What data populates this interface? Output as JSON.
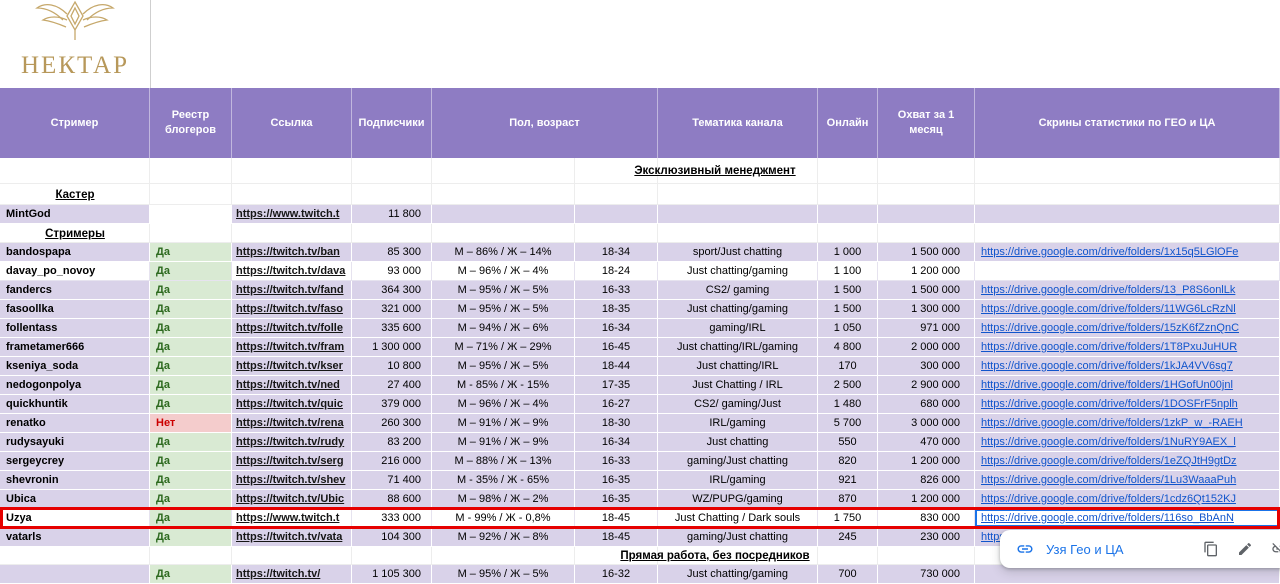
{
  "brand": {
    "name": "НЕКТАР"
  },
  "colors": {
    "header_bg": "#8e7cc3",
    "row_lavender": "#d9d2e9",
    "registry_yes_bg": "#d9ead3",
    "registry_yes_text": "#2d6a1f",
    "registry_no_bg": "#f4cccc",
    "registry_no_text": "#cc0000",
    "drive_link": "#1155cc",
    "selection_red": "#e60000",
    "selected_cell_blue": "#1a73e8",
    "logo_gold": "#b7985a"
  },
  "header": {
    "columns": [
      "Стример",
      "Реестр блогеров",
      "Ссылка",
      "Подписчики",
      "Пол, возраст",
      "Тематика канала",
      "Онлайн",
      "Охват за 1 месяц",
      "Скрины статистики  по ГЕО и ЦА"
    ]
  },
  "popup": {
    "label": "Узя Гео и ЦА",
    "icons": [
      "link-icon",
      "copy-icon",
      "edit-icon",
      "unlink-icon"
    ]
  },
  "rows": [
    {
      "kind": "section",
      "label": "Эксклюзивный менеджмент",
      "h": 26
    },
    {
      "kind": "subhead",
      "label": "Кастер",
      "h": 21
    },
    {
      "kind": "data",
      "bg": "lav",
      "name": "MintGod",
      "reg": "",
      "reg_state": "none",
      "link": "https://www.twitch.t",
      "subs": "11 800",
      "gender": "",
      "age": "",
      "theme": "",
      "online": "",
      "reach": "",
      "drive": ""
    },
    {
      "kind": "subhead",
      "label": "Стримеры",
      "h": 19
    },
    {
      "kind": "data",
      "bg": "lav",
      "name": "bandospapa",
      "reg": "Да",
      "reg_state": "yes",
      "link": "https://twitch.tv/ban",
      "subs": "85 300",
      "gender": "М – 86% / Ж – 14%",
      "age": "18-34",
      "theme": "sport/Just chatting",
      "online": "1 000",
      "reach": "1 500 000",
      "drive": "https://drive.google.com/drive/folders/1x15q5LGlOFe"
    },
    {
      "kind": "data",
      "bg": "white",
      "name": "davay_po_novoy",
      "reg": "Да",
      "reg_state": "yes",
      "link": "https://twitch.tv/dava",
      "subs": "93 000",
      "gender": "М – 96% / Ж – 4%",
      "age": "18-24",
      "theme": "Just chatting/gaming",
      "online": "1 100",
      "reach": "1 200 000",
      "drive": ""
    },
    {
      "kind": "data",
      "bg": "lav",
      "name": "fandercs",
      "reg": "Да",
      "reg_state": "yes",
      "link": "https://twitch.tv/fand",
      "subs": "364 300",
      "gender": "М – 95% / Ж – 5%",
      "age": "16-33",
      "theme": "CS2/ gaming",
      "online": "1 500",
      "reach": "1 500 000",
      "drive": "https://drive.google.com/drive/folders/13_P8S6onlLk"
    },
    {
      "kind": "data",
      "bg": "lav",
      "name": "fasoollka",
      "reg": "Да",
      "reg_state": "yes",
      "link": "https://twitch.tv/faso",
      "subs": "321 000",
      "gender": "М – 95% / Ж – 5%",
      "age": "18-35",
      "theme": "Just chatting/gaming",
      "online": "1 500",
      "reach": "1 300 000",
      "drive": "https://drive.google.com/drive/folders/11WG6LcRzNl"
    },
    {
      "kind": "data",
      "bg": "lav",
      "name": "follentass",
      "reg": "Да",
      "reg_state": "yes",
      "link": "https://twitch.tv/folle",
      "subs": "335 600",
      "gender": "М – 94% / Ж – 6%",
      "age": "16-34",
      "theme": "gaming/IRL",
      "online": "1 050",
      "reach": "971 000",
      "drive": "https://drive.google.com/drive/folders/15zK6fZznQnC"
    },
    {
      "kind": "data",
      "bg": "lav",
      "name": "frametamer666",
      "reg": "Да",
      "reg_state": "yes",
      "link": "https://twitch.tv/fram",
      "subs": "1 300 000",
      "gender": "М – 71% / Ж – 29%",
      "age": "16-45",
      "theme": "Just chatting/IRL/gaming",
      "online": "4 800",
      "reach": "2 000 000",
      "drive": "https://drive.google.com/drive/folders/1T8PxuJuHUR"
    },
    {
      "kind": "data",
      "bg": "lav",
      "name": "kseniya_soda",
      "reg": "Да",
      "reg_state": "yes",
      "link": "https://twitch.tv/kser",
      "subs": "10 800",
      "gender": "М – 95% / Ж – 5%",
      "age": "18-44",
      "theme": "Just chatting/IRL",
      "online": "170",
      "reach": "300 000",
      "drive": "https://drive.google.com/drive/folders/1kJA4VV6sg7"
    },
    {
      "kind": "data",
      "bg": "lav",
      "name": "nedogonpolya",
      "reg": "Да",
      "reg_state": "yes",
      "link": "https://twitch.tv/ned",
      "subs": "27 400",
      "gender": "М - 85% / Ж - 15%",
      "age": "17-35",
      "theme": "Just Chatting / IRL",
      "online": "2 500",
      "reach": "2 900 000",
      "drive": "https://drive.google.com/drive/folders/1HGofUn00jnl"
    },
    {
      "kind": "data",
      "bg": "lav",
      "name": "quickhuntik",
      "reg": "Да",
      "reg_state": "yes",
      "link": "https://twitch.tv/quic",
      "subs": "379 000",
      "gender": "М – 96% / Ж – 4%",
      "age": "16-27",
      "theme": "CS2/ gaming/Just",
      "online": "1 480",
      "reach": "680 000",
      "drive": "https://drive.google.com/drive/folders/1DOSFrF5nplh"
    },
    {
      "kind": "data",
      "bg": "lav",
      "name": "renatko",
      "reg": "Нет",
      "reg_state": "no",
      "link": "https://twitch.tv/rena",
      "subs": "260 300",
      "gender": "М – 91% / Ж – 9%",
      "age": "18-30",
      "theme": "IRL/gaming",
      "online": "5 700",
      "reach": "3 000 000",
      "drive": "https://drive.google.com/drive/folders/1zkP_w_-RAEH"
    },
    {
      "kind": "data",
      "bg": "lav",
      "name": "rudysayuki",
      "reg": "Да",
      "reg_state": "yes",
      "link": "https://twitch.tv/rudy",
      "subs": "83 200",
      "gender": "М – 91% / Ж – 9%",
      "age": "16-34",
      "theme": "Just chatting",
      "online": "550",
      "reach": "470 000",
      "drive": "https://drive.google.com/drive/folders/1NuRY9AEX_l"
    },
    {
      "kind": "data",
      "bg": "lav",
      "name": "sergeycrey",
      "reg": "Да",
      "reg_state": "yes",
      "link": "https://twitch.tv/serg",
      "subs": "216 000",
      "gender": "М – 88% / Ж – 13%",
      "age": "16-33",
      "theme": "gaming/Just chatting",
      "online": "820",
      "reach": "1 200 000",
      "drive": "https://drive.google.com/drive/folders/1eZQJtH9gtDz"
    },
    {
      "kind": "data",
      "bg": "lav",
      "name": "shevronin",
      "reg": "Да",
      "reg_state": "yes",
      "link": "https://twitch.tv/shev",
      "subs": "71 400",
      "gender": "М - 35% / Ж - 65%",
      "age": "16-35",
      "theme": "IRL/gaming",
      "online": "921",
      "reach": "826 000",
      "drive": "https://drive.google.com/drive/folders/1Lu3WaaaPuh"
    },
    {
      "kind": "data",
      "bg": "lav",
      "name": "Ubica",
      "reg": "Да",
      "reg_state": "yes",
      "link": "https://twitch.tv/Ubic",
      "subs": "88 600",
      "gender": "М – 98% / Ж – 2%",
      "age": "16-35",
      "theme": "WZ/PUPG/gaming",
      "online": "870",
      "reach": "1 200 000",
      "drive": "https://drive.google.com/drive/folders/1cdz6Qt152KJ"
    },
    {
      "kind": "data",
      "bg": "white",
      "name": "Uzya",
      "reg": "Да",
      "reg_state": "yes",
      "link": "https://www.twitch.t",
      "subs": "333 000",
      "gender": "М - 99% / Ж - 0,8%",
      "age": "18-45",
      "theme": "Just Chatting / Dark souls",
      "online": "1 750",
      "reach": "830 000",
      "drive": "https://drive.google.com/drive/folders/116so_BbAnN",
      "selected": true,
      "sel_cell": "drive"
    },
    {
      "kind": "data",
      "bg": "lav",
      "name": "vatarls",
      "reg": "Да",
      "reg_state": "yes",
      "link": "https://twitch.tv/vata",
      "subs": "104 300",
      "gender": "М – 92% / Ж – 8%",
      "age": "18-45",
      "theme": "gaming/Just chatting",
      "online": "245",
      "reach": "230 000",
      "drive": "https://drive.google.com/drive/folders/1"
    },
    {
      "kind": "section",
      "label": "Прямая работа, без посредников",
      "h": 18
    },
    {
      "kind": "data",
      "bg": "lav",
      "name": "",
      "reg": "Да",
      "reg_state": "yes",
      "link": "https://twitch.tv/",
      "subs": "1 105 300",
      "gender": "М – 95% / Ж – 5%",
      "age": "16-32",
      "theme": "Just chatting/gaming",
      "online": "700",
      "reach": "730 000",
      "drive": ""
    }
  ]
}
